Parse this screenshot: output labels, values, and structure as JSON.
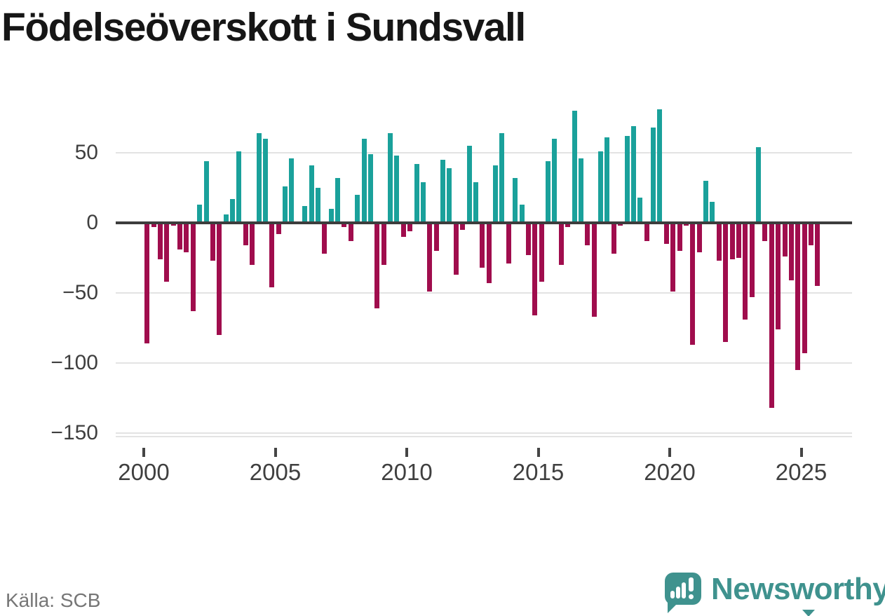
{
  "title": "Födelseöverskott i Sundsvall",
  "source": "Källa: SCB",
  "branding": {
    "wordmark": "Newsworthy",
    "logo_icon": "newsworthy-speech-bubble-barchart-icon"
  },
  "colors": {
    "positive": "#1AA19B",
    "negative": "#A00D4D",
    "brand": "#3F928E",
    "grid": "#E3E3E3",
    "zero_line": "#3D3D3D",
    "axis_text": "#3F3F3F",
    "source_text": "#767676",
    "title_text": "#161616"
  },
  "chart_data": {
    "type": "bar",
    "title": "Födelseöverskott i Sundsvall",
    "xlabel": "",
    "ylabel": "",
    "freq": "quarterly",
    "start": "2000 Q1",
    "end": "2025 Q3",
    "ylim": [
      -155,
      89
    ],
    "grid": "horizontal",
    "legend": "none",
    "y_ticks": [
      50,
      0,
      -50,
      -100,
      -150
    ],
    "y_tick_labels": [
      "50",
      "0",
      "−50",
      "−100",
      "−150"
    ],
    "x_tick_years": [
      2000,
      2005,
      2010,
      2015,
      2020,
      2025
    ],
    "x_tick_labels": [
      "2000",
      "2005",
      "2010",
      "2015",
      "2020",
      "2025"
    ],
    "values": [
      -86,
      -3,
      -26,
      -42,
      -2,
      -19,
      -21,
      -63,
      13,
      44,
      -27,
      -80,
      6,
      17,
      51,
      -16,
      -30,
      64,
      60,
      -46,
      -8,
      26,
      46,
      0,
      12,
      41,
      25,
      -22,
      10,
      32,
      -3,
      -13,
      20,
      60,
      49,
      -61,
      -30,
      64,
      48,
      -10,
      -6,
      42,
      29,
      -49,
      -20,
      45,
      39,
      -37,
      -5,
      55,
      29,
      -32,
      -43,
      41,
      64,
      -29,
      32,
      13,
      -23,
      -66,
      -42,
      44,
      60,
      -30,
      -3,
      80,
      46,
      -16,
      -67,
      51,
      61,
      -22,
      -2,
      62,
      69,
      18,
      -13,
      68,
      81,
      -15,
      -49,
      -20,
      -2,
      -87,
      -21,
      30,
      15,
      -27,
      -85,
      -26,
      -25,
      -69,
      -53,
      54,
      -13,
      -132,
      -76,
      -24,
      -41,
      -105,
      -93,
      -16,
      -45
    ]
  }
}
